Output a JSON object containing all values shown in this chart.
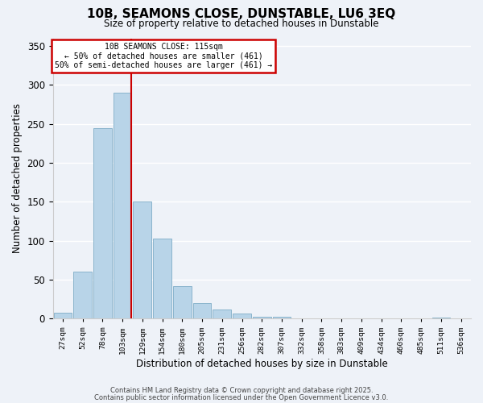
{
  "title": "10B, SEAMONS CLOSE, DUNSTABLE, LU6 3EQ",
  "subtitle": "Size of property relative to detached houses in Dunstable",
  "xlabel": "Distribution of detached houses by size in Dunstable",
  "ylabel": "Number of detached properties",
  "bar_values": [
    8,
    60,
    245,
    290,
    150,
    103,
    42,
    20,
    12,
    7,
    3,
    2,
    0,
    0,
    0,
    0,
    0,
    0,
    0,
    1,
    0
  ],
  "bin_labels": [
    "27sqm",
    "52sqm",
    "78sqm",
    "103sqm",
    "129sqm",
    "154sqm",
    "180sqm",
    "205sqm",
    "231sqm",
    "256sqm",
    "282sqm",
    "307sqm",
    "332sqm",
    "358sqm",
    "383sqm",
    "409sqm",
    "434sqm",
    "460sqm",
    "485sqm",
    "511sqm",
    "536sqm"
  ],
  "bar_color": "#b8d4e8",
  "bar_edge_color": "#8ab4cc",
  "vline_color": "#cc0000",
  "annotation_title": "10B SEAMONS CLOSE: 115sqm",
  "annotation_line1": "← 50% of detached houses are smaller (461)",
  "annotation_line2": "50% of semi-detached houses are larger (461) →",
  "annotation_box_color": "#ffffff",
  "annotation_box_edge": "#cc0000",
  "ylim": [
    0,
    360
  ],
  "yticks": [
    0,
    50,
    100,
    150,
    200,
    250,
    300,
    350
  ],
  "footer1": "Contains HM Land Registry data © Crown copyright and database right 2025.",
  "footer2": "Contains public sector information licensed under the Open Government Licence v3.0.",
  "bg_color": "#eef2f8"
}
